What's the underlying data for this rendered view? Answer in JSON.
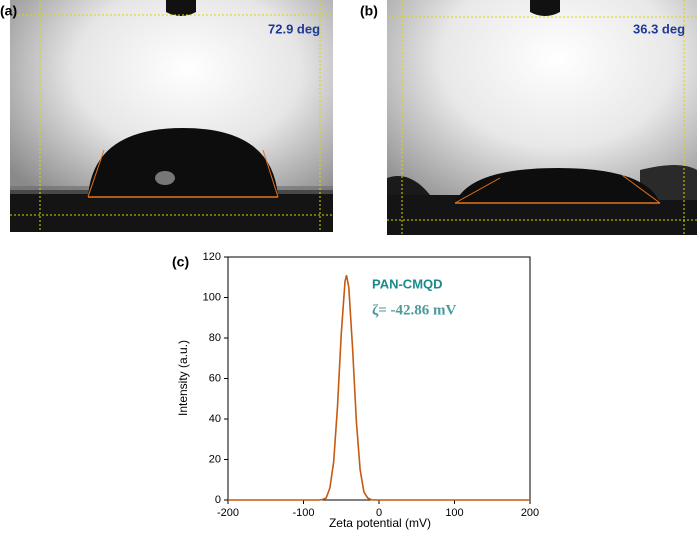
{
  "panels": [
    {
      "label": "(a)",
      "angle": "72.9 deg"
    },
    {
      "label": "(b)",
      "angle": "36.3 deg"
    }
  ],
  "chart_data": {
    "type": "line",
    "label": "(c)",
    "x_label": "Zeta potential (mV)",
    "y_label": "Intensity (a.u.)",
    "annotation": "ζ= -42.86 mV",
    "x": [
      -200,
      -100,
      -80,
      -75,
      -70,
      -65,
      -60,
      -55,
      -50,
      -45,
      -43,
      -40,
      -35,
      -30,
      -25,
      -20,
      -15,
      -10,
      0,
      100,
      200
    ],
    "series": [
      {
        "name": "PAN-CMQD",
        "color": "#c55a11",
        "values": [
          0,
          0,
          0,
          0.2,
          1,
          6,
          19,
          46,
          82,
          108,
          111,
          105,
          75,
          39,
          15,
          4,
          1,
          0.1,
          0,
          0,
          0
        ]
      }
    ],
    "xlim": [
      -200,
      200
    ],
    "xticks": [
      -200,
      -100,
      0,
      100,
      200
    ],
    "ylim": [
      0,
      120
    ],
    "yticks": [
      0,
      20,
      40,
      60,
      80,
      100,
      120
    ]
  }
}
